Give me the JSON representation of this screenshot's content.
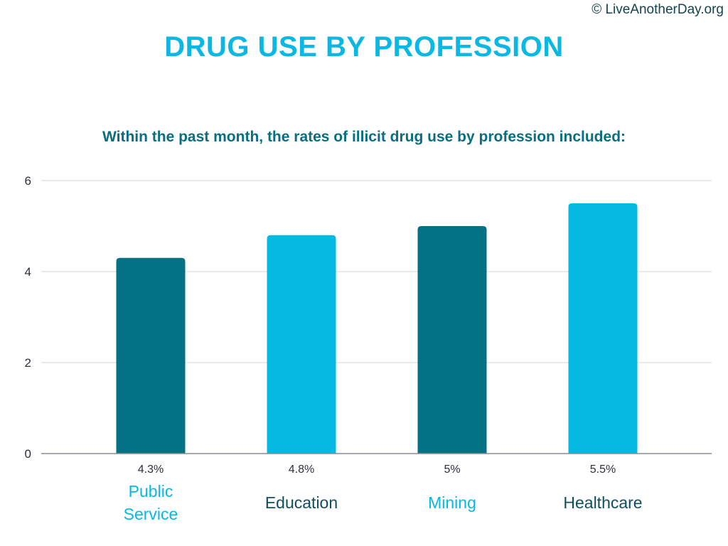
{
  "header": {
    "copyright": "© LiveAnotherDay.org",
    "title": "DRUG USE BY PROFESSION",
    "subtitle": "Within the past month, the rates of illicit drug use by profession included:"
  },
  "colors": {
    "dark_bar": "#037285",
    "light_bar": "#05b9e2",
    "title": "#0ab8e3",
    "subtitle": "#0b6e7f",
    "grid": "#d6d6d6",
    "axis": "#8c8c96"
  },
  "chart_data": {
    "type": "bar",
    "title": "DRUG USE BY PROFESSION",
    "subtitle": "Within the past month, the rates of illicit drug use by profession included:",
    "categories": [
      [
        "Public",
        "Service"
      ],
      [
        "Education"
      ],
      [
        "Mining"
      ],
      [
        "Healthcare"
      ]
    ],
    "values": [
      4.3,
      4.8,
      5,
      5.5
    ],
    "data_labels": [
      "4.3%",
      "4.8%",
      "5%",
      "5.5%"
    ],
    "bar_colors": [
      "#037285",
      "#05b9e2",
      "#037285",
      "#05b9e2"
    ],
    "category_label_colors": [
      "#05b9e2",
      "#0f4f5c",
      "#05b9e2",
      "#0f4f5c"
    ],
    "ylim": [
      0,
      6
    ],
    "yticks": [
      0,
      2,
      4,
      6
    ],
    "xlabel": "",
    "ylabel": "",
    "grid": true,
    "legend": "none"
  }
}
